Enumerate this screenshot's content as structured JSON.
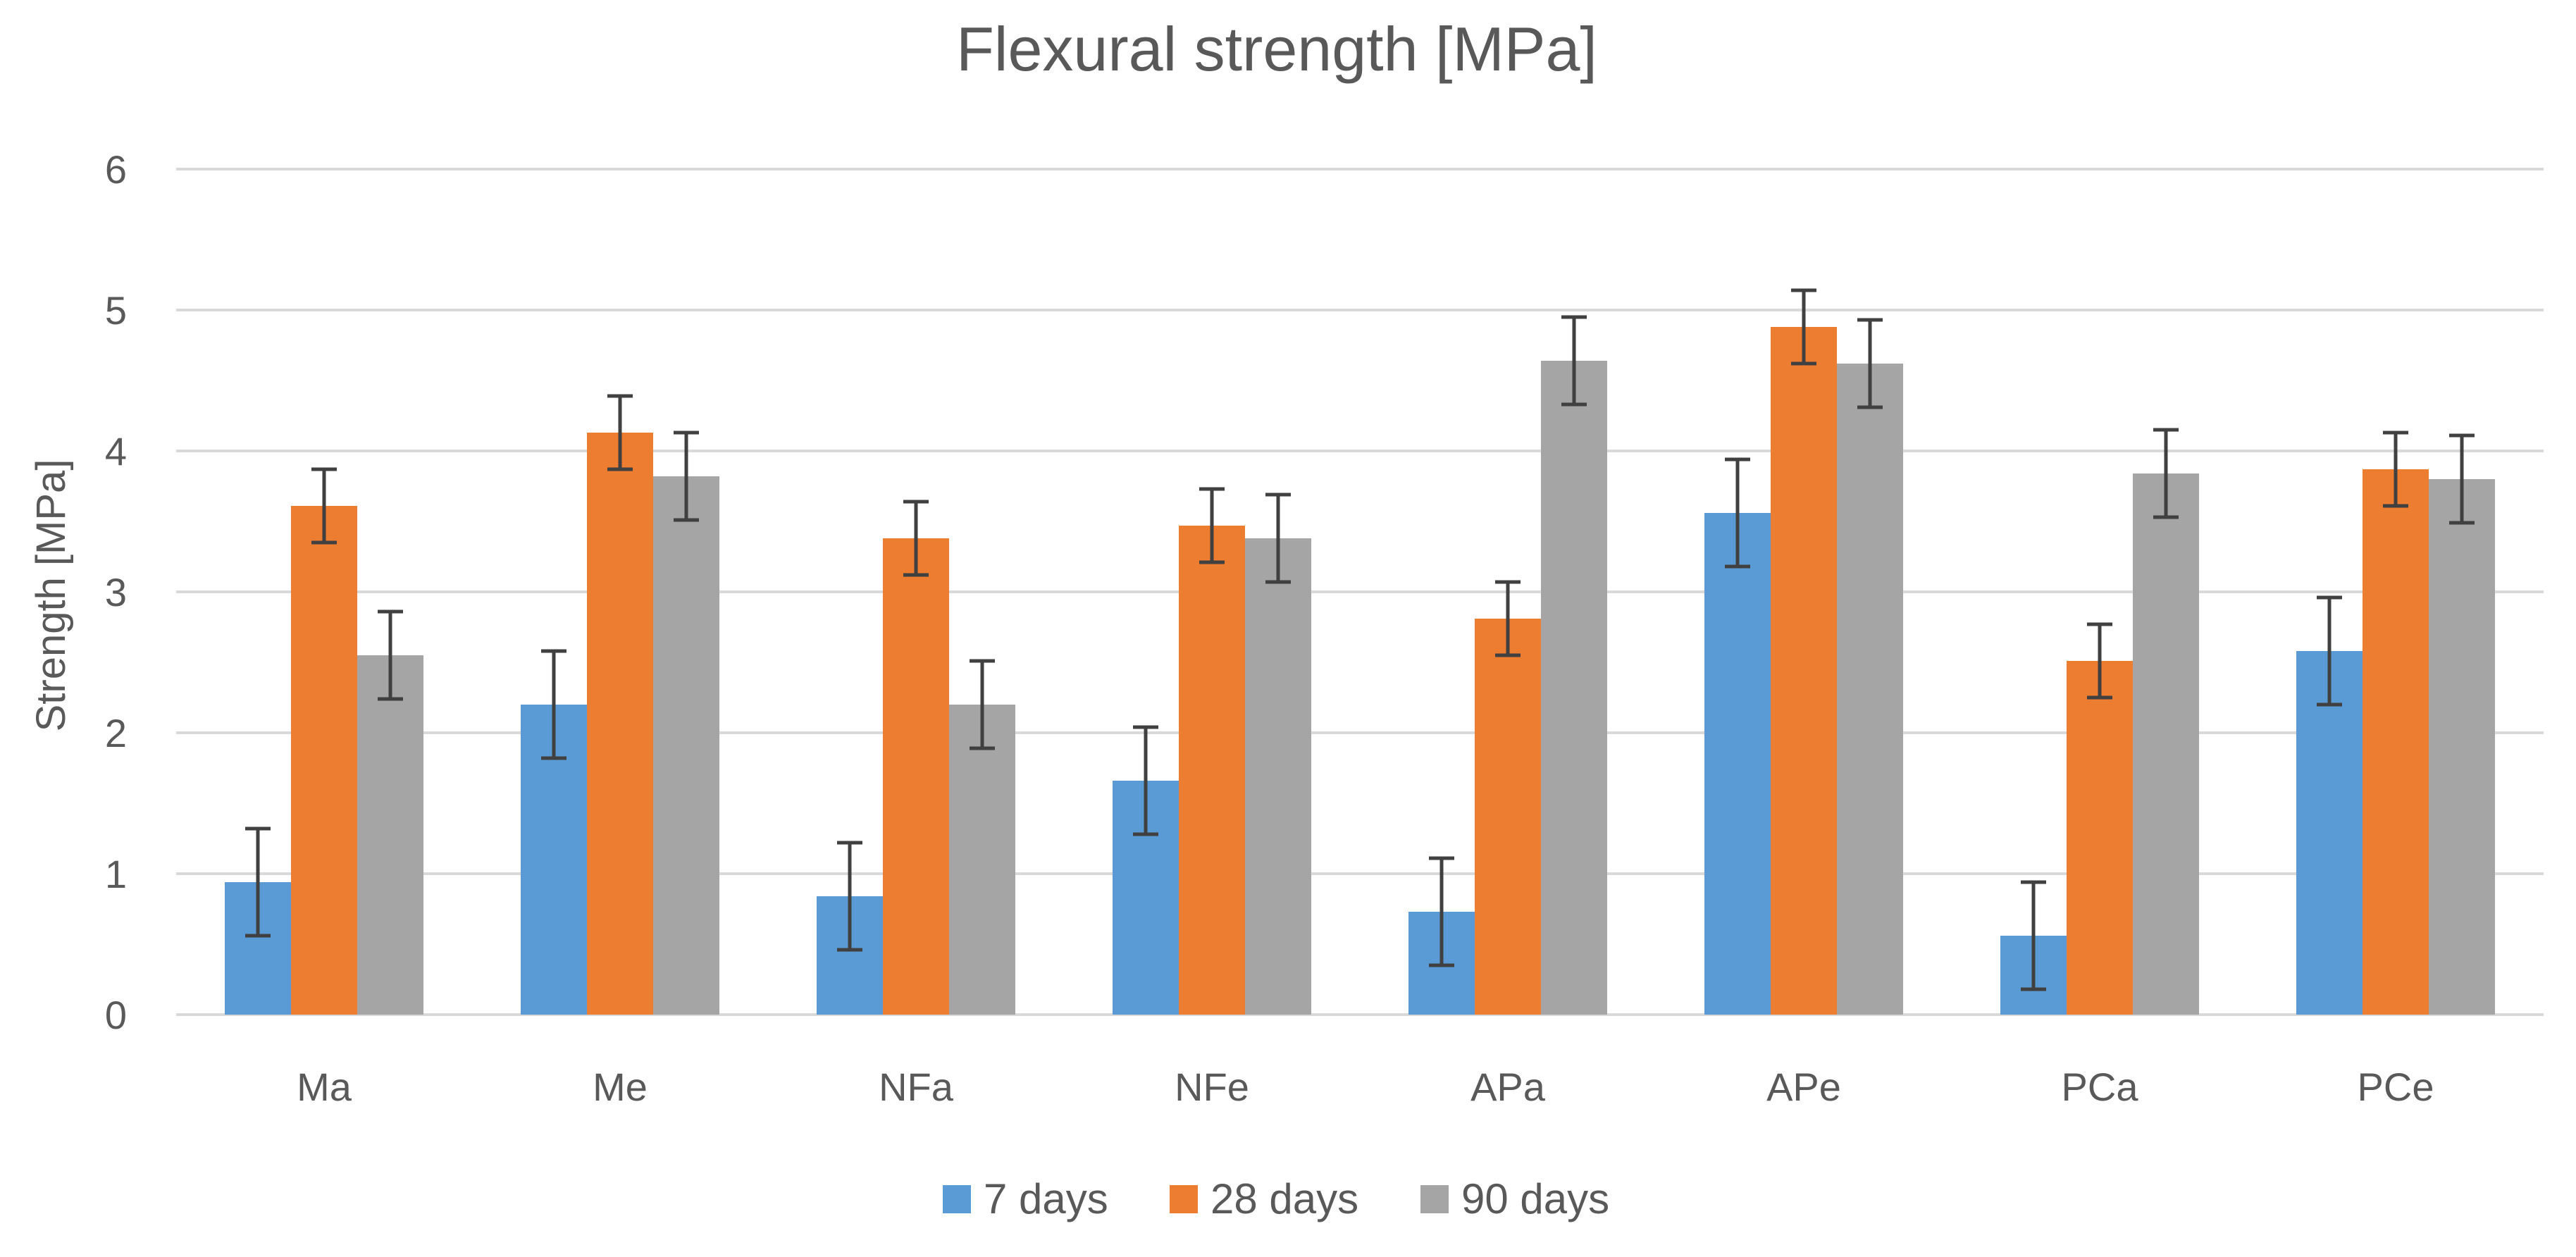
{
  "chart_data": {
    "type": "bar",
    "title": "Flexural strength [MPa]",
    "xlabel": "",
    "ylabel": "Strength [MPa]",
    "ylim": [
      0,
      6
    ],
    "yticks": [
      0,
      1,
      2,
      3,
      4,
      5,
      6
    ],
    "grid": true,
    "legend_position": "bottom",
    "categories": [
      "Ma",
      "Me",
      "NFa",
      "NFe",
      "APa",
      "APe",
      "PCa",
      "PCe"
    ],
    "series": [
      {
        "name": "7 days",
        "color": "#5b9bd5",
        "values": [
          0.94,
          2.2,
          0.84,
          1.66,
          0.73,
          3.56,
          0.56,
          2.58
        ],
        "errors": [
          0.38,
          0.38,
          0.38,
          0.38,
          0.38,
          0.38,
          0.38,
          0.38
        ]
      },
      {
        "name": "28 days",
        "color": "#ed7d31",
        "values": [
          3.61,
          4.13,
          3.38,
          3.47,
          2.81,
          4.88,
          2.51,
          3.87
        ],
        "errors": [
          0.26,
          0.26,
          0.26,
          0.26,
          0.26,
          0.26,
          0.26,
          0.26
        ]
      },
      {
        "name": "90 days",
        "color": "#a5a5a5",
        "values": [
          2.55,
          3.82,
          2.2,
          3.38,
          4.64,
          4.62,
          3.84,
          3.8
        ],
        "errors": [
          0.31,
          0.31,
          0.31,
          0.31,
          0.31,
          0.31,
          0.31,
          0.31
        ]
      }
    ]
  }
}
